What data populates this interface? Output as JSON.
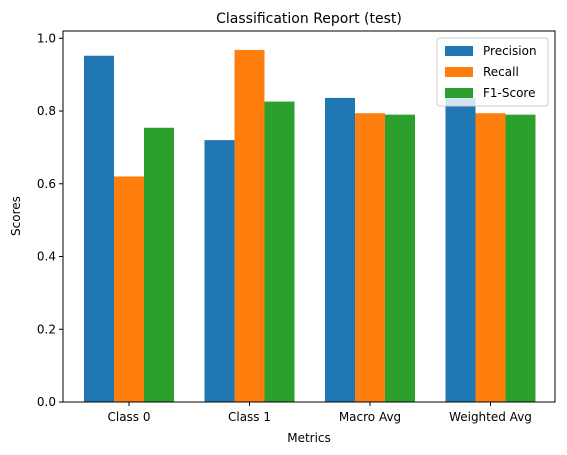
{
  "chart_data": {
    "type": "bar",
    "title": "Classification Report (test)",
    "xlabel": "Metrics",
    "ylabel": "Scores",
    "categories": [
      "Class 0",
      "Class 1",
      "Macro Avg",
      "Weighted Avg"
    ],
    "series": [
      {
        "name": "Precision",
        "color": "#1f77b4",
        "values": [
          0.952,
          0.72,
          0.836,
          0.836
        ]
      },
      {
        "name": "Recall",
        "color": "#ff7f0e",
        "values": [
          0.62,
          0.968,
          0.794,
          0.794
        ]
      },
      {
        "name": "F1-Score",
        "color": "#2ca02c",
        "values": [
          0.754,
          0.826,
          0.79,
          0.79
        ]
      }
    ],
    "ylim": [
      0,
      1.02
    ],
    "yticks": [
      "0.0",
      "0.2",
      "0.4",
      "0.6",
      "0.8",
      "1.0"
    ],
    "grid": false,
    "legend_position": "top-right"
  }
}
